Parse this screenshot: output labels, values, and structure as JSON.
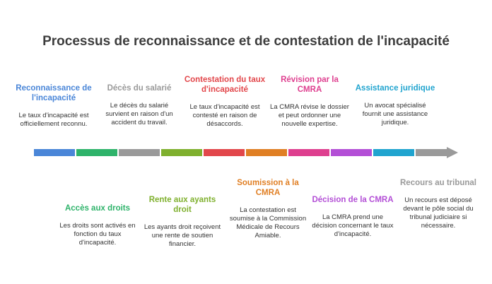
{
  "title": "Processus de reconnaissance et de contestation de l'incapacité",
  "top_steps": [
    {
      "title": "Reconnaissance de l'incapacité",
      "desc": "Le taux d'incapacité est officiellement reconnu.",
      "color": "#4a86d8"
    },
    {
      "title": "Décès du salarié",
      "desc": "Le décès du salarié survient en raison d'un accident du travail.",
      "color": "#9a9a9a"
    },
    {
      "title": "Contestation du taux d'incapacité",
      "desc": "Le taux d'incapacité est contesté en raison de désaccords.",
      "color": "#e2474b"
    },
    {
      "title": "Révision par la CMRA",
      "desc": "La CMRA révise le dossier et peut ordonner une nouvelle expertise.",
      "color": "#de3f8f"
    },
    {
      "title": "Assistance juridique",
      "desc": "Un avocat spécialisé fournit une assistance juridique.",
      "color": "#20a4cf"
    }
  ],
  "bottom_steps": [
    {
      "title": "Accès aux droits",
      "desc": "Les droits sont activés en fonction du taux d'incapacité.",
      "color": "#2eb36a"
    },
    {
      "title": "Rente aux ayants droit",
      "desc": "Les ayants droit reçoivent une rente de soutien financier.",
      "color": "#7fb02e"
    },
    {
      "title": "Soumission à la CMRA",
      "desc": "La contestation est soumise à la Commission Médicale de Recours Amiable.",
      "color": "#e07f24"
    },
    {
      "title": "Décision de la CMRA",
      "desc": "La CMRA prend une décision concernant le taux d'incapacité.",
      "color": "#b34fd6"
    },
    {
      "title": "Recours au tribunal",
      "desc": "Un recours est déposé devant le pôle social du tribunal judiciaire si nécessaire.",
      "color": "#9a9a9a"
    }
  ],
  "segment_colors": [
    "#4a86d8",
    "#2eb36a",
    "#9a9a9a",
    "#7fb02e",
    "#e2474b",
    "#e07f24",
    "#de3f8f",
    "#b34fd6",
    "#20a4cf",
    "#9a9a9a"
  ]
}
